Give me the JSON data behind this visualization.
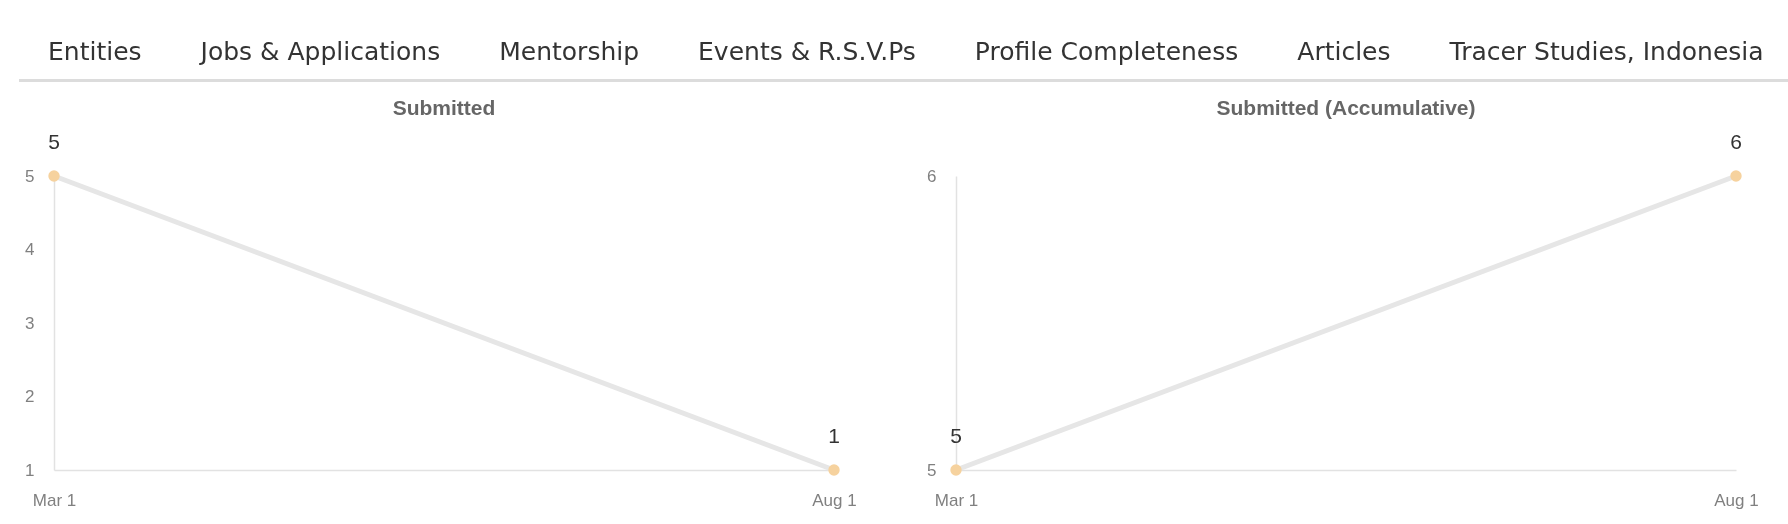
{
  "chart_data": [
    {
      "type": "other",
      "annotations": [
        "Entities",
        "Jobs & Applications",
        "Mentorship",
        "Events & R.S.V.Ps",
        "Profile Completeness",
        "Articles",
        "Tracer Studies, Indonesia"
      ]
    },
    {
      "type": "line",
      "title": "Submitted",
      "x": [
        "--03-01",
        "--08-01"
      ],
      "series": [
        {
          "color": "#e6e6e6",
          "colors": [
            "#f6d29e",
            "#f6d29e"
          ],
          "values": [
            5,
            1
          ]
        }
      ],
      "xlim": [
        "--03-01",
        "--08-01"
      ],
      "xticks": [
        {
          "value": "--03-01",
          "label": "Mar 1"
        },
        {
          "value": "--08-01",
          "label": "Aug 1"
        }
      ],
      "ylim": [
        1,
        5
      ],
      "yticks": [
        1,
        2,
        3,
        4,
        5
      ],
      "marker": "circle",
      "line_style": "solid",
      "data_labels": true
    },
    {
      "type": "line",
      "title": "Submitted (Accumulative)",
      "x": [
        "--03-01",
        "--08-01"
      ],
      "series": [
        {
          "color": "#e6e6e6",
          "colors": [
            "#f6d29e",
            "#f6d29e"
          ],
          "values": [
            5,
            6
          ]
        }
      ],
      "xlim": [
        "--03-01",
        "--08-01"
      ],
      "xticks": [
        {
          "value": "--03-01",
          "label": "Mar 1"
        },
        {
          "value": "--08-01",
          "label": "Aug 1"
        }
      ],
      "ylim": [
        5,
        6
      ],
      "yticks": [
        5,
        6
      ],
      "marker": "circle",
      "line_style": "solid",
      "data_labels": true
    }
  ]
}
